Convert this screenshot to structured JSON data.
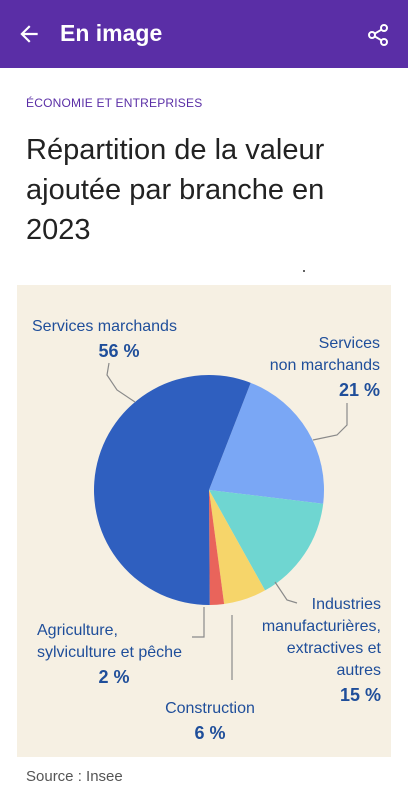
{
  "header": {
    "title": "En image",
    "back_icon": "arrow-left-icon",
    "share_icon": "share-icon",
    "background": "#5a2ea6"
  },
  "article": {
    "category": "ÉCONOMIE ET ENTREPRISES",
    "title": "Répartition de la valeur ajoutée par branche en 2023",
    "source": "Source : Insee"
  },
  "chart_data": {
    "type": "pie",
    "title": "",
    "slices": [
      {
        "label": "Services marchands",
        "label_lines": [
          "Services marchands"
        ],
        "value_label": "56 %",
        "value": 56,
        "color": "#2f5fbf"
      },
      {
        "label": "Services non marchands",
        "label_lines": [
          "Services",
          "non marchands"
        ],
        "value_label": "21 %",
        "value": 21,
        "color": "#7aa7f5"
      },
      {
        "label": "Industries manufacturières, extractives et autres",
        "label_lines": [
          "Industries",
          "manufacturières,",
          "extractives et",
          "autres"
        ],
        "value_label": "15 %",
        "value": 15,
        "color": "#6fd6d1"
      },
      {
        "label": "Construction",
        "label_lines": [
          "Construction"
        ],
        "value_label": "6 %",
        "value": 6,
        "color": "#f6d56a"
      },
      {
        "label": "Agriculture, sylviculture et pêche",
        "label_lines": [
          "Agriculture,",
          "sylviculture et pêche"
        ],
        "value_label": "2 %",
        "value": 2,
        "color": "#e9645b"
      }
    ],
    "background": "#f6f0e3"
  }
}
